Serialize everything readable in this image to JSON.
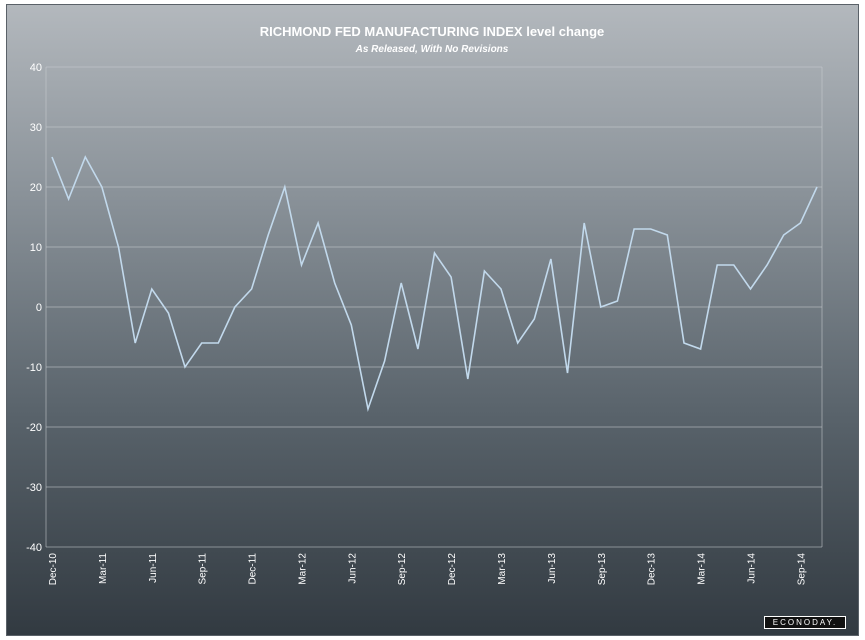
{
  "chart_data": {
    "type": "line",
    "title": "RICHMOND FED MANUFACTURING INDEX level change",
    "subtitle": "As Released, With No Revisions",
    "xlabel": "",
    "ylabel": "",
    "ylim": [
      -40,
      40
    ],
    "yticks": [
      40,
      30,
      20,
      10,
      0,
      -10,
      -20,
      -30,
      -40
    ],
    "grid": true,
    "legend": "none",
    "x": [
      "Dec-10",
      "Jan-11",
      "Feb-11",
      "Mar-11",
      "Apr-11",
      "May-11",
      "Jun-11",
      "Jul-11",
      "Aug-11",
      "Sep-11",
      "Oct-11",
      "Nov-11",
      "Dec-11",
      "Jan-12",
      "Feb-12",
      "Mar-12",
      "Apr-12",
      "May-12",
      "Jun-12",
      "Jul-12",
      "Aug-12",
      "Sep-12",
      "Oct-12",
      "Nov-12",
      "Dec-12",
      "Jan-13",
      "Feb-13",
      "Mar-13",
      "Apr-13",
      "May-13",
      "Jun-13",
      "Jul-13",
      "Aug-13",
      "Sep-13",
      "Oct-13",
      "Nov-13",
      "Dec-13",
      "Jan-14",
      "Feb-14",
      "Mar-14",
      "Apr-14",
      "May-14",
      "Jun-14",
      "Jul-14",
      "Aug-14",
      "Sep-14",
      "Oct-14"
    ],
    "xtick_labels": [
      "Dec-10",
      "Mar-11",
      "Jun-11",
      "Sep-11",
      "Dec-11",
      "Mar-12",
      "Jun-12",
      "Sep-12",
      "Dec-12",
      "Mar-13",
      "Jun-13",
      "Sep-13",
      "Dec-13",
      "Mar-14",
      "Jun-14",
      "Sep-14"
    ],
    "series": [
      {
        "values": [
          25,
          18,
          25,
          20,
          10,
          -6,
          3,
          -1,
          -10,
          -6,
          -6,
          0,
          3,
          12,
          20,
          7,
          14,
          4,
          -3,
          -17,
          -9,
          4,
          -7,
          9,
          5,
          -12,
          6,
          3,
          -6,
          -2,
          8,
          -11,
          14,
          0,
          1,
          13,
          13,
          12,
          -6,
          -7,
          7,
          7,
          3,
          7,
          12,
          14,
          20
        ]
      }
    ]
  },
  "colors": {
    "line": "#c2d9ec"
  },
  "logo_text": "ECONODAY."
}
